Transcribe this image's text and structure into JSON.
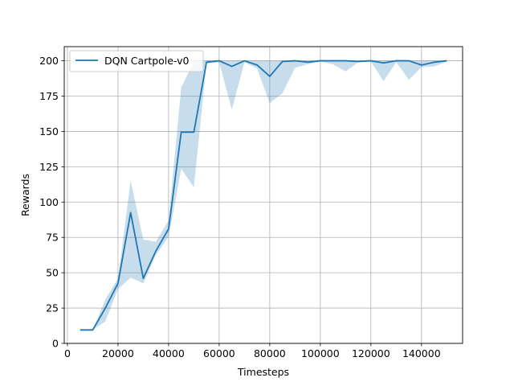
{
  "chart_data": {
    "type": "line",
    "title": "",
    "xlabel": "Timesteps",
    "ylabel": "Rewards",
    "xlim": [
      -1250,
      156250
    ],
    "ylim": [
      0,
      210
    ],
    "xticks": [
      0,
      20000,
      40000,
      60000,
      80000,
      100000,
      120000,
      140000
    ],
    "yticks": [
      0,
      25,
      50,
      75,
      100,
      125,
      150,
      175,
      200
    ],
    "grid": true,
    "legend_position": "top-left",
    "series": [
      {
        "name": "DQN Cartpole-v0",
        "color": "#1f77b4",
        "band_color": "#1f77b4",
        "x": [
          5000,
          10000,
          15000,
          20000,
          25000,
          30000,
          35000,
          40000,
          45000,
          50000,
          55000,
          60000,
          65000,
          70000,
          75000,
          80000,
          85000,
          90000,
          95000,
          100000,
          105000,
          110000,
          115000,
          120000,
          125000,
          130000,
          135000,
          140000,
          145000,
          150000
        ],
        "y": [
          9.5,
          9.5,
          25,
          42.5,
          92.5,
          46,
          65.5,
          81,
          149.5,
          149.5,
          199,
          200,
          196,
          200,
          197,
          189,
          199.5,
          200,
          199,
          200,
          200,
          200,
          199.5,
          200,
          198.5,
          200,
          200,
          197,
          199,
          200
        ],
        "lower": [
          9.5,
          9.5,
          15.5,
          38.5,
          46.5,
          42.5,
          62.5,
          75.5,
          123.5,
          110.5,
          198,
          199,
          165.5,
          199,
          194.5,
          170,
          177,
          195,
          197.5,
          199.5,
          197.5,
          192.5,
          199,
          199.5,
          185.5,
          199,
          186.5,
          195.5,
          196,
          199.5
        ],
        "upper": [
          9.5,
          9.5,
          31,
          46,
          115,
          73.5,
          72,
          87,
          181,
          200,
          200,
          200,
          200,
          200,
          200,
          200,
          200,
          200,
          200,
          200,
          200,
          200,
          200,
          200,
          200,
          200,
          200,
          200,
          200,
          200
        ]
      }
    ]
  }
}
